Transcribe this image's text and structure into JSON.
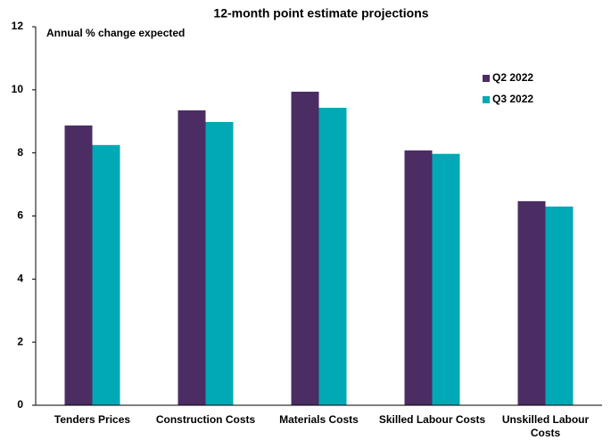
{
  "chart_data": {
    "type": "bar",
    "title": "12-month point estimate projections",
    "y_label": "Annual % change expected",
    "categories": [
      "Tenders Prices",
      "Construction Costs",
      "Materials Costs",
      "Skilled Labour Costs",
      "Unskilled Labour Costs"
    ],
    "series": [
      {
        "name": "Q2 2022",
        "color": "#4b2d63",
        "values": [
          8.87,
          9.35,
          9.94,
          8.08,
          6.47
        ]
      },
      {
        "name": "Q3 2022",
        "color": "#00a9b5",
        "values": [
          8.25,
          8.98,
          9.43,
          7.97,
          6.3
        ]
      }
    ],
    "ylim": [
      0,
      12
    ],
    "yticks": [
      0,
      2,
      4,
      6,
      8,
      10,
      12
    ],
    "grid": false,
    "legend": "upper right"
  }
}
